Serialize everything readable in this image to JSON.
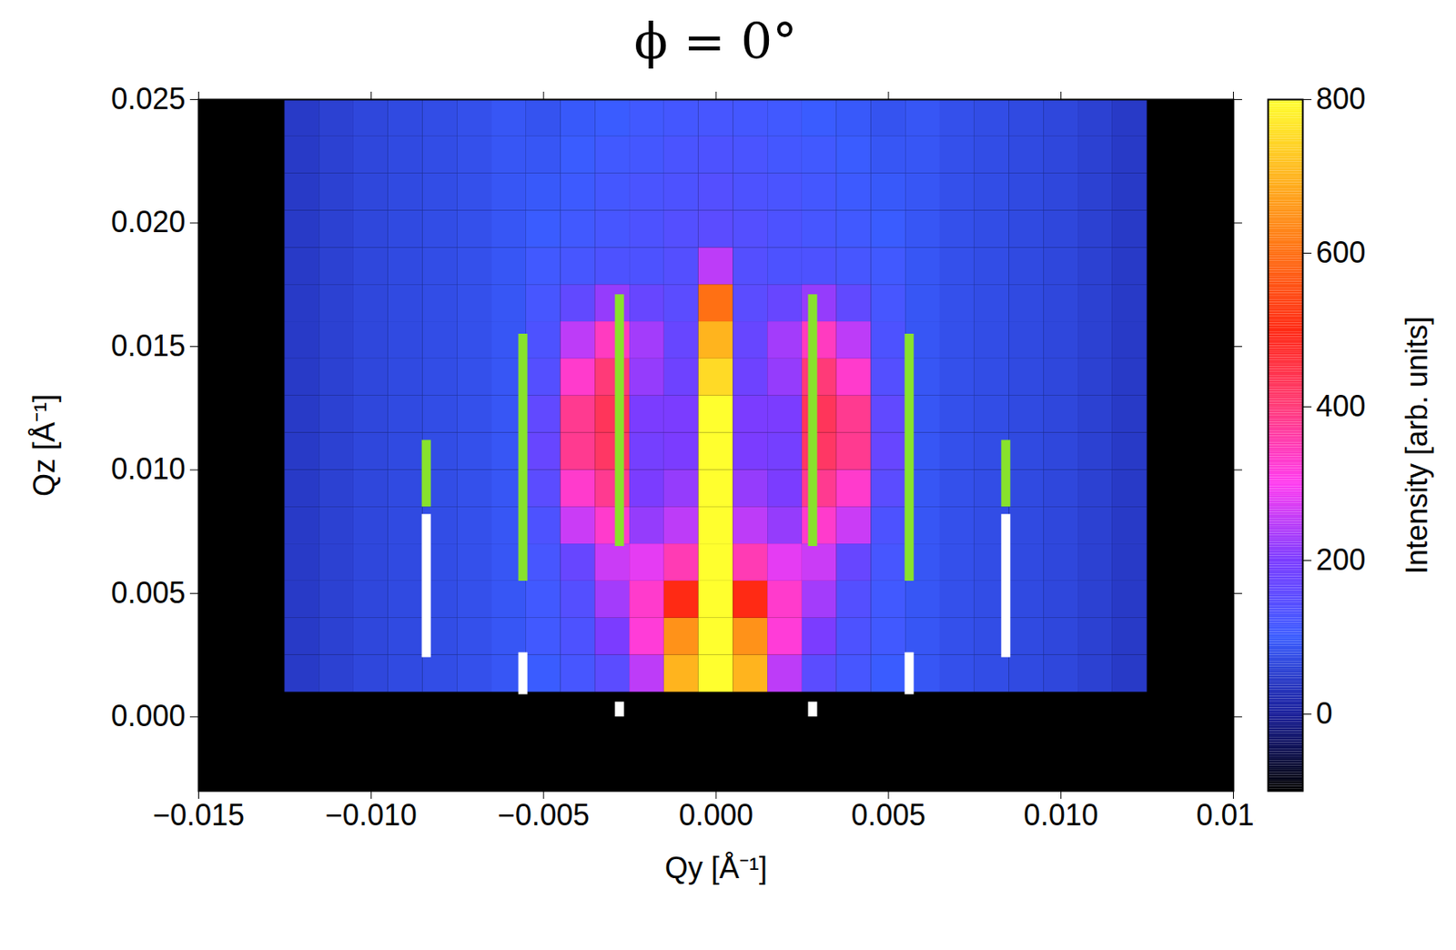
{
  "chart_data": {
    "type": "heatmap",
    "title": "ϕ = 0°",
    "xlabel": "Qy [Å⁻¹]",
    "ylabel": "Qz [Å⁻¹]",
    "xlim": [
      -0.015,
      0.015
    ],
    "ylim": [
      -0.003,
      0.025
    ],
    "xticks": [
      {
        "value": -0.015,
        "label": "−0.015"
      },
      {
        "value": -0.01,
        "label": "−0.010"
      },
      {
        "value": -0.005,
        "label": "−0.005"
      },
      {
        "value": 0,
        "label": "0.000"
      },
      {
        "value": 0.005,
        "label": "0.005"
      },
      {
        "value": 0.01,
        "label": "0.010"
      },
      {
        "value": 0.015,
        "label": "0.015"
      }
    ],
    "yticks": [
      {
        "value": 0,
        "label": "0.000"
      },
      {
        "value": 0.005,
        "label": "0.005"
      },
      {
        "value": 0.01,
        "label": "0.010"
      },
      {
        "value": 0.015,
        "label": "0.015"
      },
      {
        "value": 0.02,
        "label": "0.020"
      },
      {
        "value": 0.025,
        "label": "0.025"
      }
    ],
    "x_edges": [
      -0.0125,
      -0.0115,
      -0.0105,
      -0.0095,
      -0.0085,
      -0.0075,
      -0.0065,
      -0.0055,
      -0.0045,
      -0.0035,
      -0.0025,
      -0.0015,
      -0.0005,
      0.0005,
      0.0015,
      0.0025,
      0.0035,
      0.0045,
      0.0055,
      0.0065,
      0.0075,
      0.0085,
      0.0095,
      0.0105,
      0.0115,
      0.0125
    ],
    "y_edges": [
      0.001,
      0.0025,
      0.004,
      0.0055,
      0.007,
      0.0085,
      0.01,
      0.0115,
      0.013,
      0.0145,
      0.016,
      0.0175,
      0.019,
      0.0205,
      0.022,
      0.0235,
      0.025
    ],
    "values": [
      [
        45,
        55,
        65,
        70,
        75,
        80,
        90,
        100,
        120,
        150,
        250,
        700,
        800,
        700,
        250,
        150,
        120,
        100,
        90,
        80,
        75,
        70,
        65,
        55,
        45
      ],
      [
        45,
        55,
        65,
        70,
        75,
        80,
        90,
        110,
        130,
        200,
        320,
        650,
        800,
        650,
        320,
        200,
        130,
        110,
        90,
        80,
        75,
        70,
        65,
        55,
        45
      ],
      [
        45,
        55,
        65,
        70,
        75,
        80,
        90,
        110,
        140,
        230,
        330,
        500,
        800,
        500,
        330,
        230,
        140,
        110,
        90,
        80,
        75,
        70,
        65,
        55,
        45
      ],
      [
        45,
        55,
        65,
        70,
        75,
        80,
        90,
        120,
        170,
        260,
        280,
        350,
        800,
        350,
        280,
        260,
        170,
        120,
        90,
        80,
        75,
        70,
        65,
        55,
        45
      ],
      [
        45,
        55,
        65,
        70,
        75,
        80,
        90,
        130,
        260,
        330,
        220,
        250,
        800,
        250,
        220,
        330,
        260,
        130,
        90,
        80,
        75,
        70,
        65,
        55,
        45
      ],
      [
        45,
        55,
        65,
        70,
        75,
        80,
        90,
        150,
        330,
        380,
        200,
        220,
        800,
        220,
        200,
        380,
        330,
        150,
        90,
        80,
        75,
        70,
        65,
        55,
        45
      ],
      [
        45,
        55,
        65,
        70,
        75,
        80,
        90,
        170,
        380,
        420,
        190,
        200,
        800,
        200,
        190,
        420,
        380,
        170,
        90,
        80,
        75,
        70,
        65,
        55,
        45
      ],
      [
        45,
        55,
        65,
        70,
        75,
        80,
        90,
        160,
        380,
        430,
        200,
        200,
        800,
        200,
        200,
        430,
        380,
        160,
        90,
        80,
        75,
        70,
        65,
        55,
        45
      ],
      [
        45,
        55,
        65,
        70,
        75,
        80,
        90,
        140,
        330,
        400,
        220,
        180,
        750,
        180,
        220,
        400,
        330,
        140,
        90,
        80,
        75,
        70,
        65,
        55,
        45
      ],
      [
        45,
        55,
        65,
        70,
        75,
        80,
        90,
        130,
        250,
        340,
        230,
        170,
        700,
        170,
        230,
        340,
        250,
        130,
        90,
        80,
        75,
        70,
        65,
        55,
        45
      ],
      [
        45,
        55,
        65,
        70,
        75,
        80,
        90,
        120,
        160,
        220,
        170,
        150,
        600,
        150,
        170,
        220,
        160,
        120,
        90,
        80,
        75,
        70,
        65,
        55,
        45
      ],
      [
        45,
        55,
        65,
        70,
        75,
        80,
        90,
        110,
        120,
        130,
        130,
        140,
        250,
        140,
        130,
        130,
        120,
        110,
        90,
        80,
        75,
        70,
        65,
        55,
        45
      ],
      [
        45,
        55,
        65,
        70,
        75,
        80,
        90,
        100,
        110,
        120,
        130,
        140,
        150,
        140,
        130,
        120,
        110,
        100,
        90,
        80,
        75,
        70,
        65,
        55,
        45
      ],
      [
        45,
        55,
        65,
        70,
        75,
        80,
        90,
        95,
        105,
        115,
        125,
        130,
        140,
        130,
        125,
        115,
        105,
        95,
        90,
        80,
        75,
        70,
        65,
        55,
        45
      ],
      [
        45,
        55,
        65,
        70,
        75,
        80,
        90,
        90,
        100,
        110,
        115,
        125,
        130,
        125,
        115,
        110,
        100,
        90,
        90,
        80,
        75,
        70,
        65,
        55,
        45
      ],
      [
        45,
        55,
        65,
        70,
        75,
        80,
        90,
        85,
        95,
        100,
        110,
        115,
        120,
        115,
        110,
        100,
        95,
        85,
        90,
        80,
        75,
        70,
        65,
        55,
        45
      ]
    ],
    "colorbar": {
      "label": "Intensity [arb. units]",
      "lim": [
        -100,
        800
      ],
      "ticks": [
        0,
        200,
        400,
        600,
        800
      ]
    },
    "markers": [
      {
        "x": -0.0084,
        "y1": 0.0085,
        "y2": 0.0112,
        "color": "#88e22c"
      },
      {
        "x": -0.0056,
        "y1": 0.0055,
        "y2": 0.0155,
        "color": "#88e22c"
      },
      {
        "x": -0.0028,
        "y1": 0.0069,
        "y2": 0.0171,
        "color": "#88e22c"
      },
      {
        "x": 0.0028,
        "y1": 0.0069,
        "y2": 0.0171,
        "color": "#88e22c"
      },
      {
        "x": 0.0056,
        "y1": 0.0055,
        "y2": 0.0155,
        "color": "#88e22c"
      },
      {
        "x": 0.0084,
        "y1": 0.0085,
        "y2": 0.0112,
        "color": "#88e22c"
      },
      {
        "x": -0.0084,
        "y1": 0.0024,
        "y2": 0.0082,
        "color": "#ffffff"
      },
      {
        "x": -0.0056,
        "y1": 0.0009,
        "y2": 0.0026,
        "color": "#ffffff"
      },
      {
        "x": -0.0028,
        "y1": 0.0,
        "y2": 0.0006,
        "color": "#ffffff"
      },
      {
        "x": 0.0028,
        "y1": 0.0,
        "y2": 0.0006,
        "color": "#ffffff"
      },
      {
        "x": 0.0056,
        "y1": 0.0009,
        "y2": 0.0026,
        "color": "#ffffff"
      },
      {
        "x": 0.0084,
        "y1": 0.0024,
        "y2": 0.0082,
        "color": "#ffffff"
      }
    ]
  }
}
